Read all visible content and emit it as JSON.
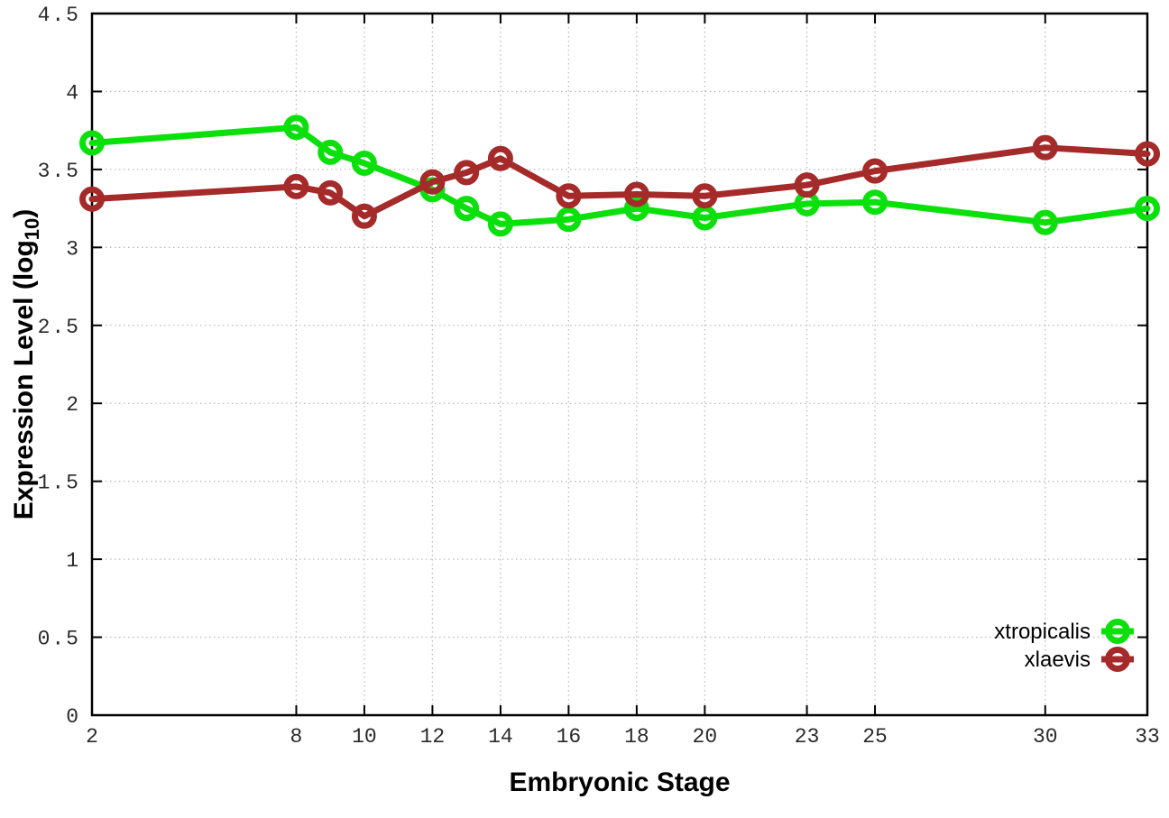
{
  "chart": {
    "background": "#ffffff",
    "plot_border_color": "#000000",
    "grid_color": "#bcbcbc",
    "tick_label_color": "#2a2a2a",
    "text_color": "#000000"
  },
  "chart_data": {
    "type": "line",
    "title": "",
    "xlabel": "Embryonic Stage",
    "ylabel": "Expression Level (log10)",
    "ylabel_parts": {
      "main": "Expression Level (log",
      "sub": "10",
      "suffix": ")"
    },
    "xlim": [
      2,
      33
    ],
    "ylim": [
      0,
      4.5
    ],
    "x_ticks": [
      2,
      8,
      10,
      12,
      14,
      16,
      18,
      20,
      23,
      25,
      30,
      33
    ],
    "y_ticks": [
      0,
      0.5,
      1,
      1.5,
      2,
      2.5,
      3,
      3.5,
      4,
      4.5
    ],
    "grid": true,
    "legend_position": "bottom-right",
    "x": [
      2,
      8,
      9,
      10,
      12,
      13,
      14,
      16,
      18,
      20,
      23,
      25,
      30,
      33
    ],
    "series": [
      {
        "name": "xtropicalis",
        "color": "#0ce00c",
        "marker": "open-circle",
        "values": [
          3.67,
          3.77,
          3.61,
          3.54,
          3.37,
          3.25,
          3.15,
          3.18,
          3.25,
          3.19,
          3.28,
          3.29,
          3.16,
          3.25
        ]
      },
      {
        "name": "xlaevis",
        "color": "#a52a2a",
        "marker": "open-circle",
        "values": [
          3.31,
          3.39,
          3.35,
          3.2,
          3.42,
          3.48,
          3.57,
          3.33,
          3.34,
          3.33,
          3.4,
          3.49,
          3.64,
          3.6
        ]
      }
    ]
  }
}
